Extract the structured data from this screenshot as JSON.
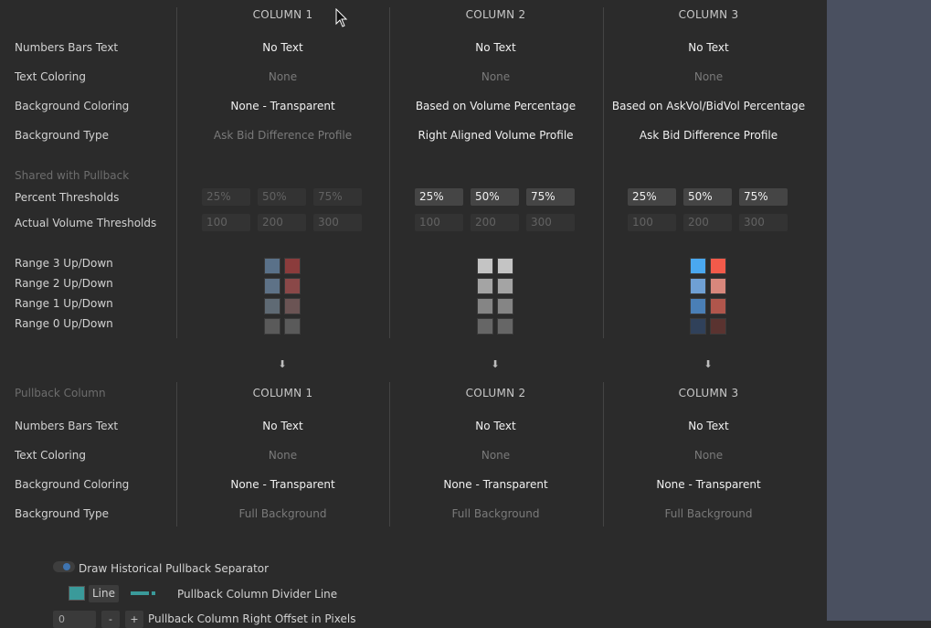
{
  "top_columns": [
    "COLUMN 1",
    "COLUMN 2",
    "COLUMN 3"
  ],
  "rows": {
    "numbers_bars_text": "Numbers Bars Text",
    "text_coloring": "Text Coloring",
    "background_coloring": "Background Coloring",
    "background_type": "Background Type",
    "shared_with_pullback": "Shared with Pullback",
    "percent_thresholds": "Percent Thresholds",
    "actual_volume_thresholds": "Actual Volume Thresholds",
    "range3": "Range 3 Up/Down",
    "range2": "Range 2 Up/Down",
    "range1": "Range 1 Up/Down",
    "range0": "Range 0 Up/Down"
  },
  "columns": [
    {
      "numbers_bars_text": "No Text",
      "text_coloring": "None",
      "background_coloring": "None - Transparent",
      "background_type": "Ask Bid Difference Profile",
      "percent": [
        "25%",
        "50%",
        "75%"
      ],
      "volume": [
        "100",
        "200",
        "300"
      ],
      "swatches_up": [
        "#5a7189",
        "#8b3c3c",
        "#5e7287",
        "#8a4848",
        "#5f6a74",
        "#6b5454",
        "#5a5a5a",
        "#5a5a5a"
      ]
    },
    {
      "numbers_bars_text": "No Text",
      "text_coloring": "None",
      "background_coloring": "Based on Volume Percentage",
      "background_type": "Right Aligned Volume Profile",
      "percent": [
        "25%",
        "50%",
        "75%"
      ],
      "volume": [
        "100",
        "200",
        "300"
      ],
      "swatches_up": [
        "#c4c4c4",
        "#c4c4c4",
        "#a4a4a4",
        "#a4a4a4",
        "#858585",
        "#858585",
        "#666666",
        "#666666"
      ]
    },
    {
      "numbers_bars_text": "No Text",
      "text_coloring": "None",
      "background_coloring": "Based on AskVol/BidVol Percentage",
      "background_type": "Ask Bid Difference Profile",
      "percent": [
        "25%",
        "50%",
        "75%"
      ],
      "volume": [
        "100",
        "200",
        "300"
      ],
      "swatches_up": [
        "#4aa8f0",
        "#f25a4a",
        "#6fa0d4",
        "#d8877c",
        "#4a7fb6",
        "#b0564c",
        "#30415a",
        "#5a3330"
      ]
    }
  ],
  "pullback": {
    "title": "Pullback Column",
    "columns_head": [
      "COLUMN 1",
      "COLUMN 2",
      "COLUMN 3"
    ],
    "rows": {
      "numbers_bars_text": "Numbers Bars Text",
      "text_coloring": "Text Coloring",
      "background_coloring": "Background Coloring",
      "background_type": "Background Type"
    },
    "columns": [
      {
        "numbers_bars_text": "No Text",
        "text_coloring": "None",
        "background_coloring": "None - Transparent",
        "background_type": "Full Background"
      },
      {
        "numbers_bars_text": "No Text",
        "text_coloring": "None",
        "background_coloring": "None - Transparent",
        "background_type": "Full Background"
      },
      {
        "numbers_bars_text": "No Text",
        "text_coloring": "None",
        "background_coloring": "None - Transparent",
        "background_type": "Full Background"
      }
    ]
  },
  "footer": {
    "draw_separator": "Draw Historical Pullback Separator",
    "line_button": "Line",
    "divider_label": "Pullback Column Divider Line",
    "offset_value": "0",
    "minus": "-",
    "plus": "+",
    "offset_label": "Pullback Column Right Offset in Pixels"
  },
  "colors": {
    "accent_teal": "#3a9a9a",
    "toggle_blue": "#3f74b0",
    "sidebar": "#4a5060"
  }
}
